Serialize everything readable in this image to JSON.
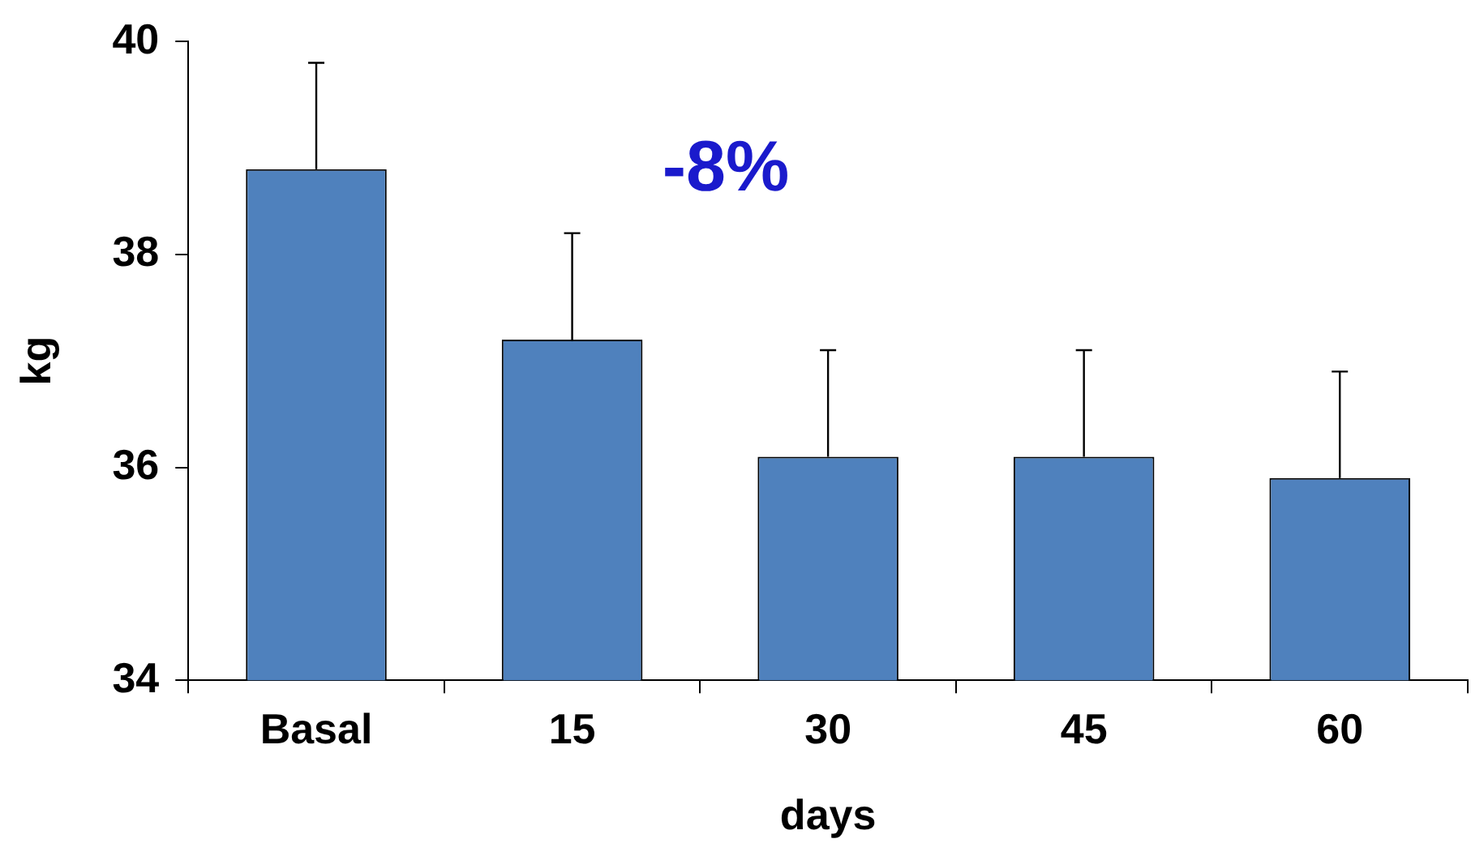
{
  "chart_data": {
    "type": "bar",
    "xlabel": "days",
    "ylabel": "kg",
    "categories": [
      "Basal",
      "15",
      "30",
      "45",
      "60"
    ],
    "values": [
      38.8,
      37.2,
      36.1,
      36.1,
      35.9
    ],
    "errors": [
      [
        38.8,
        39.8
      ],
      [
        37.2,
        38.2
      ],
      [
        36.1,
        37.1
      ],
      [
        36.1,
        37.1
      ],
      [
        35.9,
        36.9
      ]
    ],
    "color": "#4f81bd",
    "ylim": [
      34,
      40
    ],
    "yticks": [
      34,
      36,
      38,
      40
    ],
    "grid": false,
    "legend": false,
    "annotations": [
      "-8%"
    ]
  }
}
